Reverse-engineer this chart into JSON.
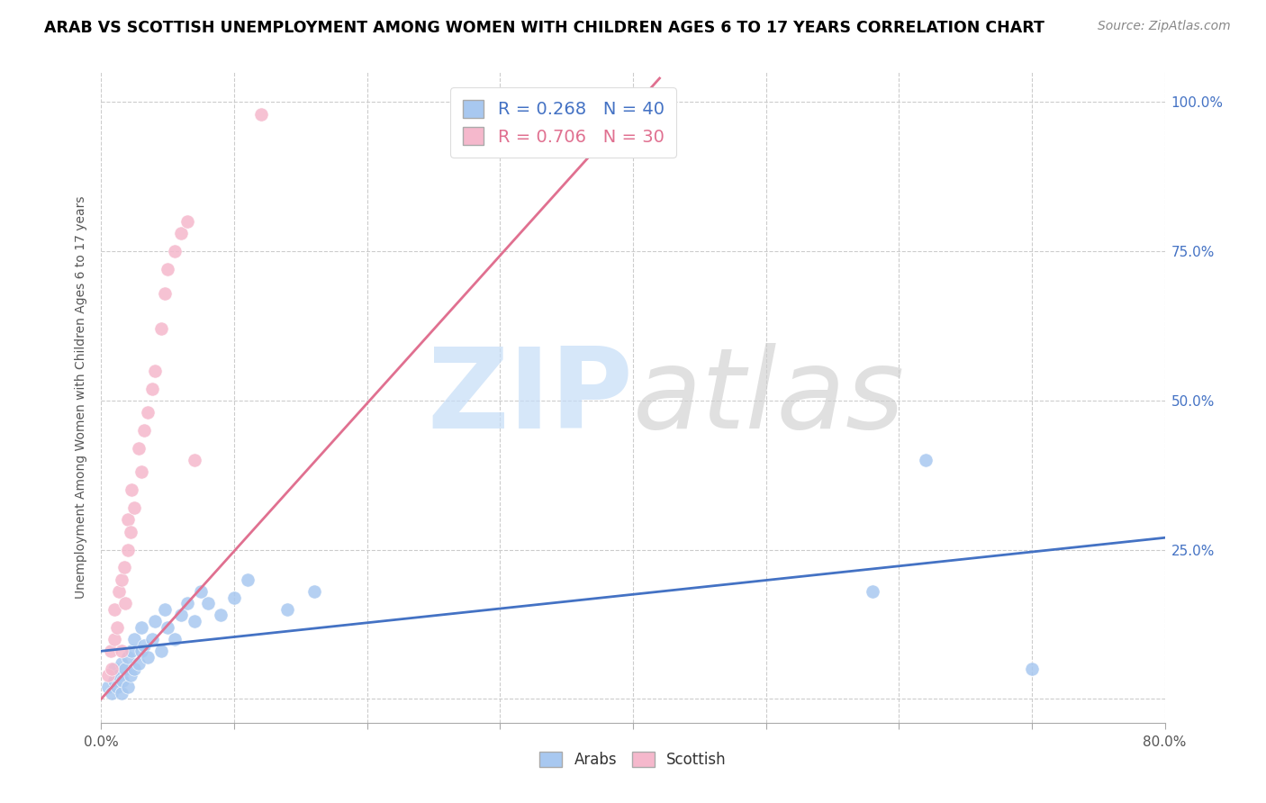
{
  "title": "ARAB VS SCOTTISH UNEMPLOYMENT AMONG WOMEN WITH CHILDREN AGES 6 TO 17 YEARS CORRELATION CHART",
  "source": "Source: ZipAtlas.com",
  "ylabel": "Unemployment Among Women with Children Ages 6 to 17 years",
  "xlim": [
    0.0,
    0.8
  ],
  "ylim": [
    -0.04,
    1.05
  ],
  "xticks": [
    0.0,
    0.1,
    0.2,
    0.3,
    0.4,
    0.5,
    0.6,
    0.7,
    0.8
  ],
  "xticklabels": [
    "0.0%",
    "",
    "",
    "",
    "",
    "",
    "",
    "",
    "80.0%"
  ],
  "yticks": [
    0.0,
    0.25,
    0.5,
    0.75,
    1.0
  ],
  "yticklabels_right": [
    "",
    "25.0%",
    "50.0%",
    "75.0%",
    "100.0%"
  ],
  "arab_R": 0.268,
  "arab_N": 40,
  "scottish_R": 0.706,
  "scottish_N": 30,
  "arab_color": "#a8c8f0",
  "scottish_color": "#f5b8cc",
  "arab_trend_color": "#4472c4",
  "scottish_trend_color": "#e07090",
  "background_color": "#ffffff",
  "grid_color": "#cccccc",
  "arab_x": [
    0.005,
    0.008,
    0.01,
    0.01,
    0.012,
    0.013,
    0.015,
    0.015,
    0.016,
    0.018,
    0.02,
    0.02,
    0.022,
    0.023,
    0.025,
    0.025,
    0.028,
    0.03,
    0.03,
    0.032,
    0.035,
    0.038,
    0.04,
    0.045,
    0.048,
    0.05,
    0.055,
    0.06,
    0.065,
    0.07,
    0.075,
    0.08,
    0.09,
    0.1,
    0.11,
    0.14,
    0.16,
    0.58,
    0.62,
    0.7
  ],
  "arab_y": [
    0.02,
    0.01,
    0.03,
    0.05,
    0.02,
    0.04,
    0.01,
    0.06,
    0.03,
    0.05,
    0.02,
    0.07,
    0.04,
    0.08,
    0.05,
    0.1,
    0.06,
    0.08,
    0.12,
    0.09,
    0.07,
    0.1,
    0.13,
    0.08,
    0.15,
    0.12,
    0.1,
    0.14,
    0.16,
    0.13,
    0.18,
    0.16,
    0.14,
    0.17,
    0.2,
    0.15,
    0.18,
    0.18,
    0.4,
    0.05
  ],
  "scottish_x": [
    0.005,
    0.007,
    0.008,
    0.01,
    0.01,
    0.012,
    0.013,
    0.015,
    0.015,
    0.017,
    0.018,
    0.02,
    0.02,
    0.022,
    0.023,
    0.025,
    0.028,
    0.03,
    0.032,
    0.035,
    0.038,
    0.04,
    0.045,
    0.048,
    0.05,
    0.055,
    0.06,
    0.065,
    0.07,
    0.12
  ],
  "scottish_y": [
    0.04,
    0.08,
    0.05,
    0.1,
    0.15,
    0.12,
    0.18,
    0.08,
    0.2,
    0.22,
    0.16,
    0.25,
    0.3,
    0.28,
    0.35,
    0.32,
    0.42,
    0.38,
    0.45,
    0.48,
    0.52,
    0.55,
    0.62,
    0.68,
    0.72,
    0.75,
    0.78,
    0.8,
    0.4,
    0.98
  ],
  "arab_trend_x0": 0.0,
  "arab_trend_y0": 0.08,
  "arab_trend_x1": 0.8,
  "arab_trend_y1": 0.27,
  "scottish_trend_x0": 0.0,
  "scottish_trend_y0": 0.0,
  "scottish_trend_x1": 0.42,
  "scottish_trend_y1": 1.04
}
